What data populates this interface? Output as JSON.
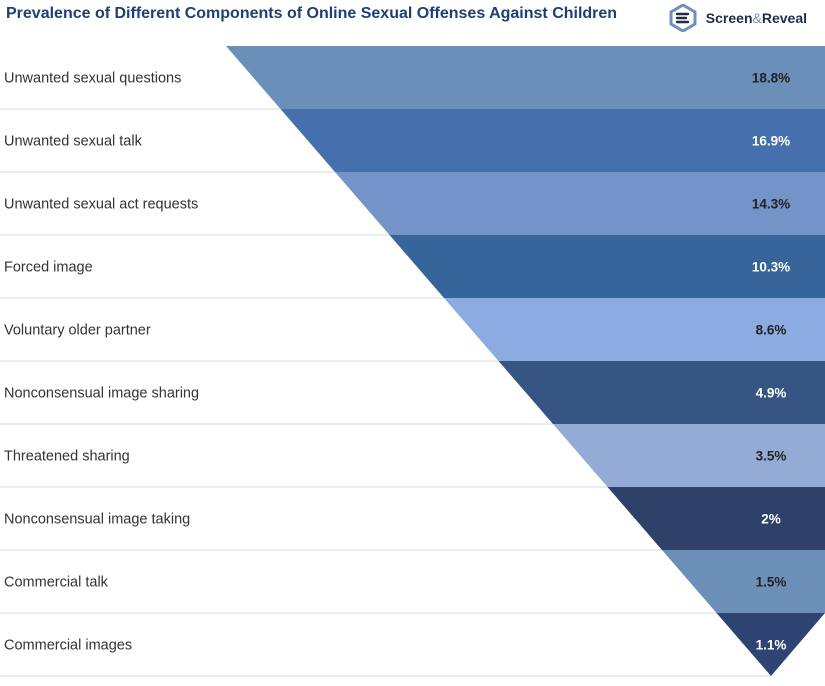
{
  "header": {
    "title": "Prevalence of Different Components of Online Sexual Offenses Against Children",
    "brand_name": "Screen",
    "brand_amp": "&",
    "brand_name2": "Reveal"
  },
  "chart_data": {
    "type": "funnel",
    "title": "Prevalence of Different Components of Online Sexual Offenses Against Children",
    "categories": [
      "Unwanted sexual questions",
      "Unwanted sexual talk",
      "Unwanted sexual act requests",
      "Forced image",
      "Voluntary older partner",
      "Nonconsensual image sharing",
      "Threatened sharing",
      "Nonconsensual image taking",
      "Commercial talk",
      "Commercial images"
    ],
    "values": [
      18.8,
      16.9,
      14.3,
      10.3,
      8.6,
      4.9,
      3.5,
      2,
      1.5,
      1.1
    ],
    "value_labels": [
      "18.8%",
      "16.9%",
      "14.3%",
      "10.3%",
      "8.6%",
      "4.9%",
      "3.5%",
      "2%",
      "1.5%",
      "1.1%"
    ],
    "colors": [
      "#6a90b9",
      "#4670ad",
      "#7493c9",
      "#36659b",
      "#8cabe0",
      "#365583",
      "#94acd5",
      "#2e4169",
      "#6c90b8",
      "#2f4473"
    ],
    "value_text_colors": [
      "#222222",
      "#ffffff",
      "#222222",
      "#ffffff",
      "#222222",
      "#ffffff",
      "#222222",
      "#ffffff",
      "#222222",
      "#ffffff"
    ],
    "unit": "%"
  }
}
